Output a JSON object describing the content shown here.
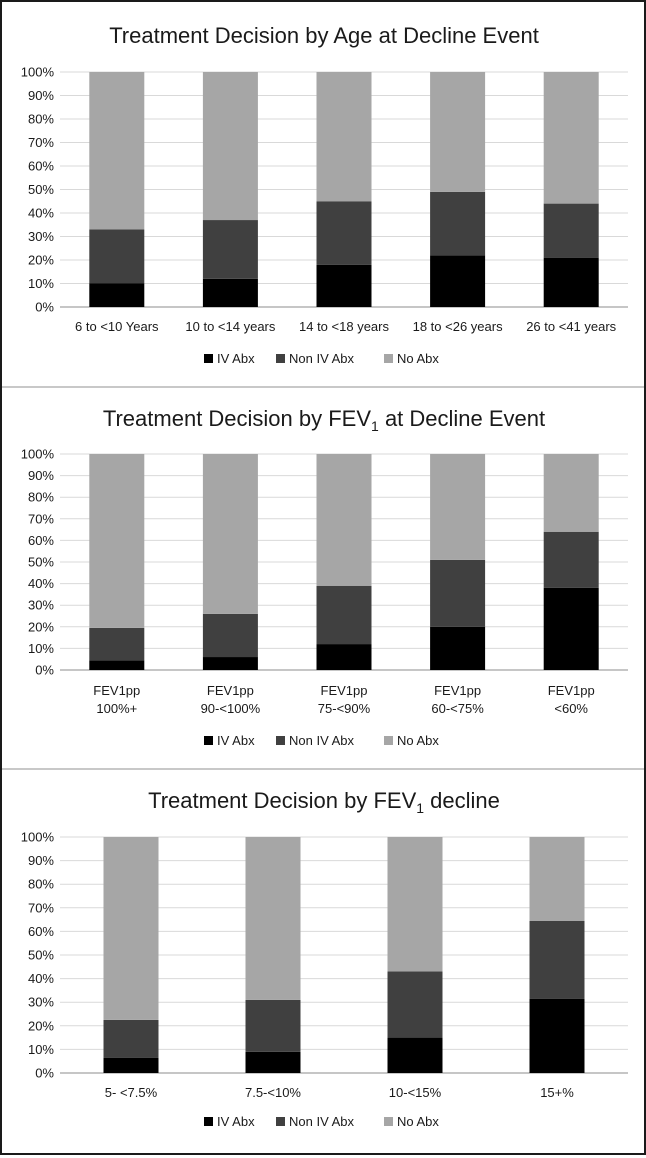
{
  "colors": {
    "iv": "#000000",
    "noniv": "#404040",
    "noabx": "#a6a6a6",
    "grid": "#d9d9d9",
    "axis": "#8c8c8c",
    "divider": "#b5b5b5"
  },
  "chart_data": [
    {
      "type": "bar",
      "stacked": true,
      "title": "Treatment Decision by Age at Decline Event",
      "title_parts": [
        "Treatment Decision by Age at Decline Event",
        "",
        ""
      ],
      "categories": [
        [
          "6 to <10 Years"
        ],
        [
          "10 to <14 years"
        ],
        [
          "14 to <18 years"
        ],
        [
          "18 to <26 years"
        ],
        [
          "26 to <41 years"
        ]
      ],
      "series": [
        {
          "name": "IV Abx",
          "values": [
            10,
            12,
            18,
            22,
            21
          ]
        },
        {
          "name": "Non IV Abx",
          "values": [
            23,
            25,
            27,
            27,
            23
          ]
        },
        {
          "name": "No Abx",
          "values": [
            67,
            63,
            55,
            51,
            56
          ]
        }
      ],
      "ylim": [
        0,
        100
      ],
      "yticks": [
        "0%",
        "10%",
        "20%",
        "30%",
        "40%",
        "50%",
        "60%",
        "70%",
        "80%",
        "90%",
        "100%"
      ],
      "legend_position": "bottom"
    },
    {
      "type": "bar",
      "stacked": true,
      "title": "Treatment Decision by FEV1 at Decline Event",
      "title_parts": [
        "Treatment Decision by FEV",
        "1",
        " at Decline Event"
      ],
      "categories": [
        [
          "FEV1pp",
          "100%+"
        ],
        [
          "FEV1pp",
          "90-<100%"
        ],
        [
          "FEV1pp",
          "75-<90%"
        ],
        [
          "FEV1pp",
          "60-<75%"
        ],
        [
          "FEV1pp",
          "<60%"
        ]
      ],
      "series": [
        {
          "name": "IV Abx",
          "values": [
            4.5,
            6,
            12,
            20,
            38
          ]
        },
        {
          "name": "Non IV Abx",
          "values": [
            15,
            20,
            27,
            31,
            26
          ]
        },
        {
          "name": "No Abx",
          "values": [
            80.5,
            74,
            61,
            49,
            36
          ]
        }
      ],
      "ylim": [
        0,
        100
      ],
      "yticks": [
        "0%",
        "10%",
        "20%",
        "30%",
        "40%",
        "50%",
        "60%",
        "70%",
        "80%",
        "90%",
        "100%"
      ],
      "legend_position": "bottom"
    },
    {
      "type": "bar",
      "stacked": true,
      "title": "Treatment Decision by FEV1 decline",
      "title_parts": [
        "Treatment Decision by FEV",
        "1",
        " decline"
      ],
      "categories": [
        [
          "5- <7.5%"
        ],
        [
          "7.5-<10%"
        ],
        [
          "10-<15%"
        ],
        [
          "15+%"
        ]
      ],
      "series": [
        {
          "name": "IV Abx",
          "values": [
            6.5,
            9,
            15,
            31.5
          ]
        },
        {
          "name": "Non IV Abx",
          "values": [
            16,
            22,
            28,
            33
          ]
        },
        {
          "name": "No Abx",
          "values": [
            77.5,
            69,
            57,
            35.5
          ]
        }
      ],
      "ylim": [
        0,
        100
      ],
      "yticks": [
        "0%",
        "10%",
        "20%",
        "30%",
        "40%",
        "50%",
        "60%",
        "70%",
        "80%",
        "90%",
        "100%"
      ],
      "legend_position": "bottom"
    }
  ]
}
